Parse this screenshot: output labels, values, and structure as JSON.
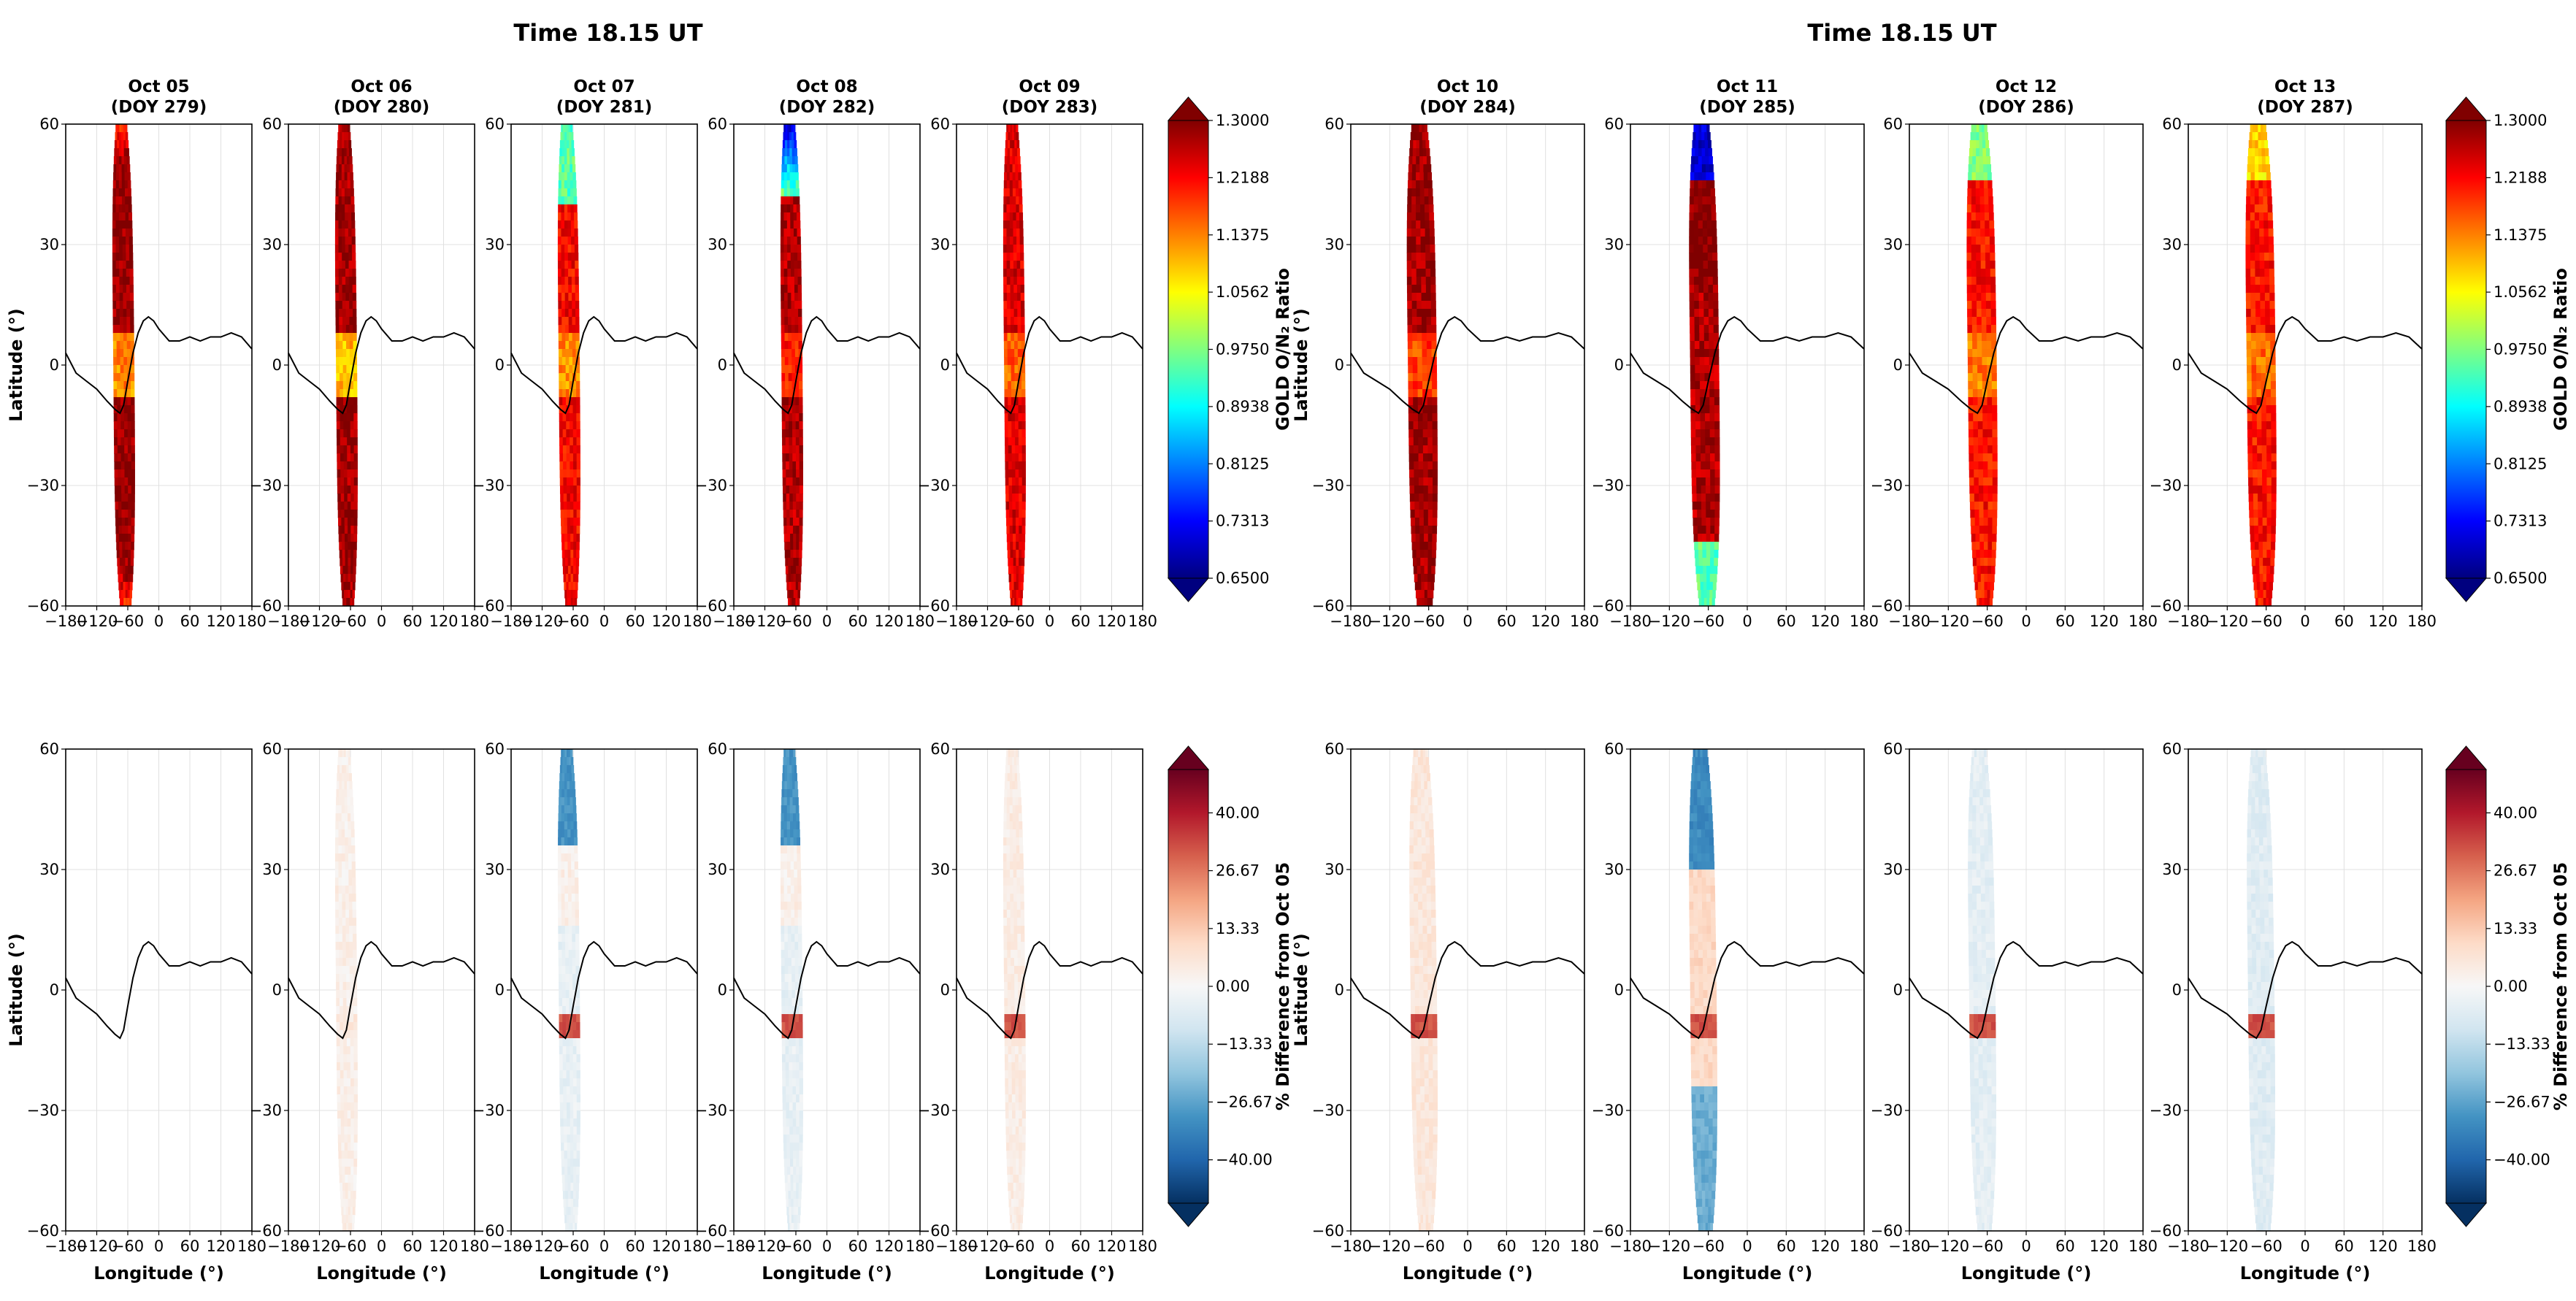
{
  "figure": {
    "super_titles": [
      "Time 18.15 UT",
      "Time 18.15 UT"
    ]
  },
  "chart_data": [
    {
      "type": "heatmap",
      "group": "left",
      "row": "top",
      "variable": "GOLD O/N₂ Ratio",
      "panels": [
        {
          "date": "Oct 05",
          "doy": "(DOY 279)",
          "center_lon": -68,
          "half_width": 20,
          "lat_coverage": [
            -60,
            60
          ]
        },
        {
          "date": "Oct 06",
          "doy": "(DOY 280)",
          "center_lon": -68,
          "half_width": 20,
          "lat_coverage": [
            -60,
            60
          ]
        },
        {
          "date": "Oct 07",
          "doy": "(DOY 281)",
          "center_lon": -68,
          "half_width": 20,
          "lat_coverage": [
            -60,
            60
          ]
        },
        {
          "date": "Oct 08",
          "doy": "(DOY 282)",
          "center_lon": -68,
          "half_width": 20,
          "lat_coverage": [
            -60,
            60
          ]
        },
        {
          "date": "Oct 09",
          "doy": "(DOY 283)",
          "center_lon": -68,
          "half_width": 20,
          "lat_coverage": [
            -60,
            60
          ]
        }
      ],
      "xlim": [
        -180,
        180
      ],
      "ylim": [
        -60,
        60
      ],
      "xticks": [
        "−180",
        "−120",
        "−60",
        "0",
        "60",
        "120",
        "180"
      ],
      "yticks": [
        "60",
        "30",
        "0",
        "−30",
        "−60"
      ],
      "ylabel": "Latitude (°)",
      "xlabel": "",
      "grid": true
    },
    {
      "type": "heatmap",
      "group": "right",
      "row": "top",
      "variable": "GOLD O/N₂ Ratio",
      "panels": [
        {
          "date": "Oct 10",
          "doy": "(DOY 284)",
          "center_lon": -70,
          "half_width": 22,
          "lat_coverage": [
            -60,
            60
          ]
        },
        {
          "date": "Oct 11",
          "doy": "(DOY 285)",
          "center_lon": -66,
          "half_width": 22,
          "lat_coverage": [
            -60,
            60
          ]
        },
        {
          "date": "Oct 12",
          "doy": "(DOY 286)",
          "center_lon": -68,
          "half_width": 22,
          "lat_coverage": [
            -60,
            60
          ]
        },
        {
          "date": "Oct 13",
          "doy": "(DOY 287)",
          "center_lon": -68,
          "half_width": 22,
          "lat_coverage": [
            -60,
            60
          ]
        }
      ],
      "xlim": [
        -180,
        180
      ],
      "ylim": [
        -60,
        60
      ],
      "xticks": [
        "−180",
        "−120",
        "−60",
        "0",
        "60",
        "120",
        "180"
      ],
      "yticks": [
        "60",
        "30",
        "0",
        "−30",
        "−60"
      ],
      "ylabel": "Latitude (°)",
      "xlabel": "",
      "grid": true
    },
    {
      "type": "heatmap",
      "group": "left",
      "row": "bottom",
      "variable": "% Difference from Oct 05",
      "panels": [
        {
          "date": "Oct 05",
          "mean_pct": 0
        },
        {
          "date": "Oct 06",
          "mean_pct": 3
        },
        {
          "date": "Oct 07",
          "mean_pct": -8
        },
        {
          "date": "Oct 08",
          "mean_pct": -10
        },
        {
          "date": "Oct 09",
          "mean_pct": 5
        }
      ],
      "xlim": [
        -180,
        180
      ],
      "ylim": [
        -60,
        60
      ],
      "xticks": [
        "−180",
        "−120",
        "−60",
        "0",
        "60",
        "120",
        "180"
      ],
      "yticks": [
        "60",
        "30",
        "0",
        "−30",
        "−60"
      ],
      "ylabel": "Latitude (°)",
      "xlabel": "Longitude (°)",
      "grid": true
    },
    {
      "type": "heatmap",
      "group": "right",
      "row": "bottom",
      "variable": "% Difference from Oct 05",
      "panels": [
        {
          "date": "Oct 10",
          "mean_pct": 8
        },
        {
          "date": "Oct 11",
          "mean_pct": -15
        },
        {
          "date": "Oct 12",
          "mean_pct": -5
        },
        {
          "date": "Oct 13",
          "mean_pct": -8
        }
      ],
      "xlim": [
        -180,
        180
      ],
      "ylim": [
        -60,
        60
      ],
      "xticks": [
        "−180",
        "−120",
        "−60",
        "0",
        "60",
        "120",
        "180"
      ],
      "yticks": [
        "60",
        "30",
        "0",
        "−30",
        "−60"
      ],
      "ylabel": "Latitude (°)",
      "xlabel": "Longitude (°)",
      "grid": true
    }
  ],
  "magnetic_equator": {
    "lon": [
      -180,
      -160,
      -140,
      -120,
      -100,
      -85,
      -75,
      -68,
      -60,
      -50,
      -40,
      -30,
      -20,
      -10,
      0,
      20,
      40,
      60,
      80,
      100,
      120,
      140,
      160,
      180
    ],
    "lat": [
      3,
      -2,
      -4,
      -6,
      -9,
      -11,
      -12,
      -10,
      -4,
      3,
      8,
      11,
      12,
      11,
      9,
      6,
      6,
      7,
      6,
      7,
      7,
      8,
      7,
      4
    ]
  },
  "colorbars": {
    "ratio": {
      "label": "GOLD O/N₂ Ratio",
      "min": 0.65,
      "max": 1.3,
      "ticks": [
        "1.3000",
        "1.2188",
        "1.1375",
        "1.0562",
        "0.9750",
        "0.8938",
        "0.8125",
        "0.7313",
        "0.6500"
      ],
      "stops": [
        "#00007f",
        "#0000ff",
        "#0080ff",
        "#00ffff",
        "#80ff80",
        "#ffff00",
        "#ff8000",
        "#ff0000",
        "#800000"
      ]
    },
    "diff": {
      "label": "% Difference from Oct 05",
      "min": -50,
      "max": 50,
      "ticks": [
        "40.00",
        "26.67",
        "13.33",
        "0.00",
        "−13.33",
        "−26.67",
        "−40.00"
      ],
      "tick_values": [
        40,
        26.67,
        13.33,
        0,
        -13.33,
        -26.67,
        -40
      ],
      "stops": [
        "#053061",
        "#2166ac",
        "#4393c3",
        "#92c5de",
        "#d1e5f0",
        "#f7f7f7",
        "#fddbc7",
        "#f4a582",
        "#d6604d",
        "#b2182b",
        "#67001f"
      ]
    }
  }
}
